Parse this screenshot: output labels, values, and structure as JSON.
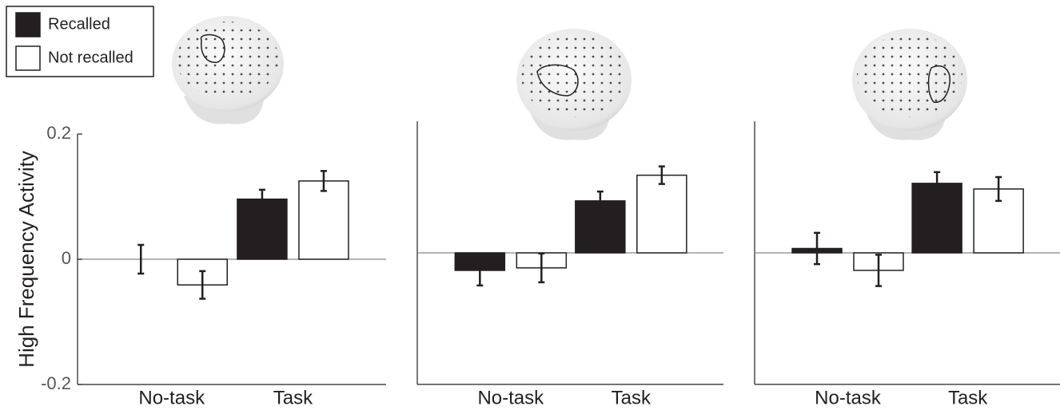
{
  "chart_data": [
    {
      "type": "bar",
      "y_label": "High Frequency Activity",
      "legend": "upper left",
      "categories": [
        "No-task",
        "Task"
      ],
      "series": [
        {
          "name": "Recalled",
          "color": "#231f20",
          "values": [
            0,
            0.096
          ],
          "errors": [
            0.023,
            0.015
          ]
        },
        {
          "name": "Not recalled",
          "color": "#ffffff",
          "values": [
            -0.041,
            0.125
          ],
          "errors": [
            0.022,
            0.016
          ]
        }
      ],
      "ylim": [
        -0.2,
        0.2
      ],
      "yticks": [
        -0.2,
        0,
        0.2
      ]
    },
    {
      "type": "bar",
      "categories": [
        "No-task",
        "Task"
      ],
      "series": [
        {
          "color": "#231f20",
          "values": [
            -0.028,
            0.083
          ],
          "errors": [
            0.024,
            0.015
          ]
        },
        {
          "color": "#ffffff",
          "values": [
            -0.024,
            0.124
          ],
          "errors": [
            0.023,
            0.014
          ]
        }
      ],
      "ylim": [
        -0.21,
        0.21
      ]
    },
    {
      "type": "bar",
      "categories": [
        "No-task",
        "Task"
      ],
      "series": [
        {
          "color": "#231f20",
          "values": [
            0.007,
            0.111
          ],
          "errors": [
            0.025,
            0.018
          ]
        },
        {
          "color": "#ffffff",
          "values": [
            -0.028,
            0.102
          ],
          "errors": [
            0.025,
            0.019
          ]
        }
      ],
      "ylim": [
        -0.21,
        0.21
      ]
    }
  ]
}
